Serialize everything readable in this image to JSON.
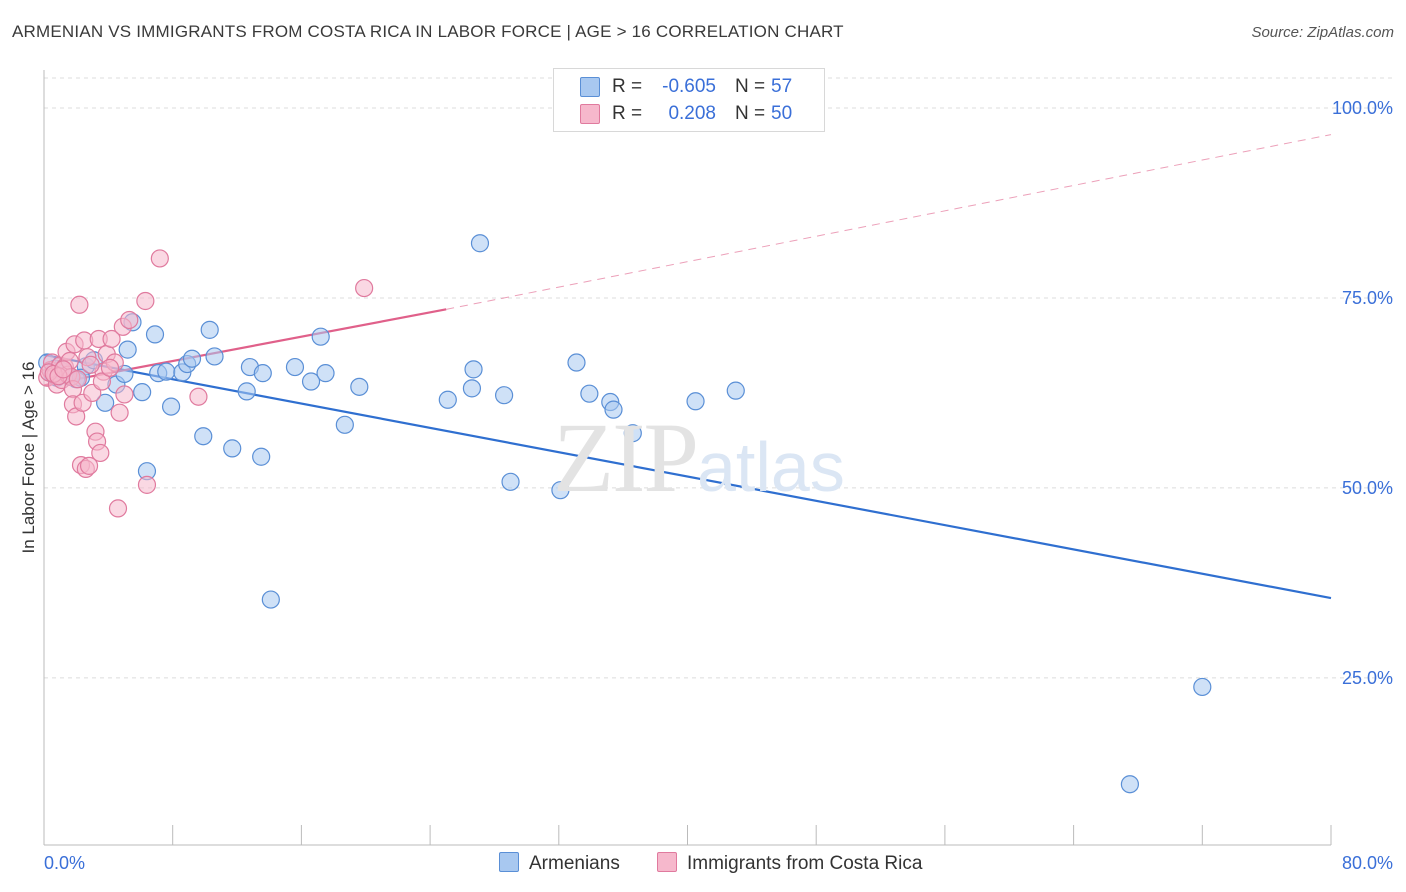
{
  "header": {
    "title": "ARMENIAN VS IMMIGRANTS FROM COSTA RICA IN LABOR FORCE | AGE > 16 CORRELATION CHART",
    "source": "Source: ZipAtlas.com"
  },
  "legend": {
    "rows": [
      {
        "r_label": "R =",
        "r_value": "-0.605",
        "n_label": "N =",
        "n_value": "57"
      },
      {
        "r_label": "R =",
        "r_value": "0.208",
        "n_label": "N =",
        "n_value": "50"
      }
    ]
  },
  "bottom_legend": {
    "items": [
      {
        "label": "Armenians"
      },
      {
        "label": "Immigrants from Costa Rica"
      }
    ]
  },
  "watermark": {
    "zip": "ZIP",
    "atlas": "atlas"
  },
  "colors": {
    "armenians_fill": "#a8c8f0",
    "armenians_stroke": "#5a8fd6",
    "armenians_line": "#2f6fd0",
    "costa_rica_fill": "#f6b8cc",
    "costa_rica_stroke": "#e07a9e",
    "costa_rica_line": "#e0608a",
    "tick_label": "#3a6fd8"
  },
  "chart_data": {
    "type": "scatter",
    "title": "ARMENIAN VS IMMIGRANTS FROM COSTA RICA IN LABOR FORCE | AGE > 16 CORRELATION CHART",
    "xlabel": "",
    "ylabel": "In Labor Force | Age > 16",
    "xlim": [
      0,
      80
    ],
    "ylim": [
      3,
      105
    ],
    "x_tick_labels": [
      "0.0%",
      "80.0%"
    ],
    "y_tick_labels": [
      "25.0%",
      "50.0%",
      "75.0%",
      "100.0%"
    ],
    "y_ticks": [
      25,
      50,
      75,
      100
    ],
    "grid": "horizontal-dashed",
    "legend_position": "top-center",
    "series": [
      {
        "name": "Armenians",
        "points": [
          [
            0.2,
            66.5
          ],
          [
            0.5,
            65.0
          ],
          [
            0.8,
            64.5
          ],
          [
            1.2,
            65.3
          ],
          [
            1.6,
            64.6
          ],
          [
            2.0,
            64.3
          ],
          [
            2.6,
            66.0
          ],
          [
            3.1,
            66.8
          ],
          [
            3.8,
            61.2
          ],
          [
            4.5,
            63.6
          ],
          [
            5.0,
            65.0
          ],
          [
            5.2,
            68.2
          ],
          [
            5.5,
            71.8
          ],
          [
            6.1,
            62.6
          ],
          [
            6.4,
            52.2
          ],
          [
            6.9,
            70.2
          ],
          [
            7.1,
            65.1
          ],
          [
            7.6,
            65.3
          ],
          [
            7.9,
            60.7
          ],
          [
            8.6,
            65.2
          ],
          [
            8.9,
            66.3
          ],
          [
            9.2,
            67.0
          ],
          [
            9.9,
            56.8
          ],
          [
            10.3,
            70.8
          ],
          [
            10.6,
            67.3
          ],
          [
            11.7,
            55.2
          ],
          [
            12.6,
            62.7
          ],
          [
            12.8,
            65.9
          ],
          [
            13.5,
            54.1
          ],
          [
            13.6,
            65.1
          ],
          [
            14.1,
            35.3
          ],
          [
            15.6,
            65.9
          ],
          [
            16.6,
            64.0
          ],
          [
            17.2,
            69.9
          ],
          [
            17.5,
            65.1
          ],
          [
            18.7,
            58.3
          ],
          [
            19.6,
            63.3
          ],
          [
            25.1,
            61.6
          ],
          [
            26.6,
            63.1
          ],
          [
            26.7,
            65.6
          ],
          [
            27.1,
            82.2
          ],
          [
            28.6,
            62.2
          ],
          [
            29.0,
            50.8
          ],
          [
            32.1,
            49.7
          ],
          [
            33.1,
            66.5
          ],
          [
            33.9,
            62.4
          ],
          [
            35.2,
            61.3
          ],
          [
            35.4,
            60.3
          ],
          [
            36.6,
            57.2
          ],
          [
            40.5,
            61.4
          ],
          [
            43.0,
            62.8
          ],
          [
            72.0,
            23.8
          ],
          [
            67.5,
            11.0
          ],
          [
            1.0,
            65.5
          ],
          [
            1.4,
            64.9
          ],
          [
            0.7,
            65.7
          ],
          [
            2.3,
            64.5
          ]
        ],
        "trend": {
          "x": [
            0,
            80
          ],
          "y": [
            67.5,
            35.5
          ]
        }
      },
      {
        "name": "Immigrants from Costa Rica",
        "points": [
          [
            0.2,
            64.5
          ],
          [
            0.4,
            65.5
          ],
          [
            0.5,
            66.5
          ],
          [
            0.7,
            64.8
          ],
          [
            0.8,
            63.6
          ],
          [
            1.0,
            66.1
          ],
          [
            1.1,
            64.2
          ],
          [
            1.3,
            65.9
          ],
          [
            1.4,
            67.9
          ],
          [
            1.5,
            64.9
          ],
          [
            1.6,
            66.7
          ],
          [
            1.7,
            64.6
          ],
          [
            1.8,
            63.0
          ],
          [
            1.8,
            61.0
          ],
          [
            1.9,
            68.9
          ],
          [
            2.0,
            59.4
          ],
          [
            2.1,
            64.3
          ],
          [
            2.2,
            74.1
          ],
          [
            2.3,
            53.0
          ],
          [
            2.4,
            61.2
          ],
          [
            2.5,
            69.4
          ],
          [
            2.6,
            52.5
          ],
          [
            2.7,
            67.2
          ],
          [
            2.8,
            52.9
          ],
          [
            3.0,
            62.5
          ],
          [
            3.2,
            57.4
          ],
          [
            3.3,
            56.1
          ],
          [
            3.4,
            69.6
          ],
          [
            3.5,
            54.6
          ],
          [
            3.7,
            65.3
          ],
          [
            3.9,
            67.6
          ],
          [
            4.2,
            69.6
          ],
          [
            4.4,
            66.5
          ],
          [
            4.6,
            47.3
          ],
          [
            4.7,
            59.9
          ],
          [
            4.9,
            71.2
          ],
          [
            5.0,
            62.3
          ],
          [
            5.3,
            72.1
          ],
          [
            6.3,
            74.6
          ],
          [
            6.4,
            50.4
          ],
          [
            7.2,
            80.2
          ],
          [
            9.6,
            62.0
          ],
          [
            19.9,
            76.3
          ],
          [
            0.3,
            65.2
          ],
          [
            0.6,
            65.0
          ],
          [
            0.9,
            64.7
          ],
          [
            1.2,
            65.6
          ],
          [
            2.9,
            66.2
          ],
          [
            3.6,
            64.0
          ],
          [
            4.1,
            65.8
          ]
        ],
        "trend": {
          "x": [
            0,
            25
          ],
          "y": [
            63.5,
            73.5
          ]
        },
        "trend_extension": {
          "x": [
            25,
            80
          ],
          "y": [
            73.5,
            96.5
          ]
        }
      }
    ]
  }
}
